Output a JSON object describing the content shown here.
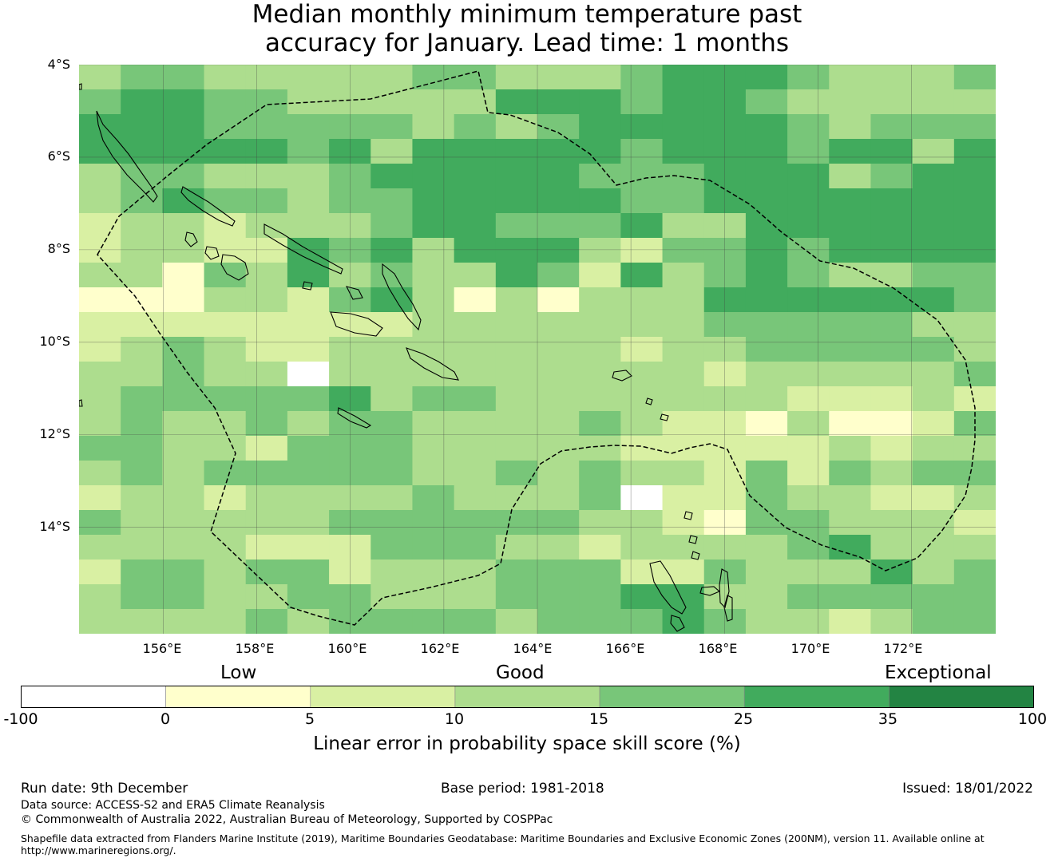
{
  "title": {
    "line1": "Median monthly minimum temperature past",
    "line2": "accuracy for January. Lead time: 1 months"
  },
  "map": {
    "lat_labels": [
      "4°S",
      "6°S",
      "8°S",
      "10°S",
      "12°S",
      "14°S"
    ],
    "lon_labels": [
      "156°E",
      "158°E",
      "160°E",
      "162°E",
      "164°E",
      "166°E",
      "168°E",
      "170°E",
      "172°E"
    ],
    "lat_values": [
      -4,
      -6,
      -8,
      -10,
      -12,
      -14
    ],
    "lon_values": [
      156,
      158,
      160,
      162,
      164,
      166,
      168,
      170,
      172
    ],
    "extent": {
      "lon_min": 154.2,
      "lon_max": 173.8,
      "lat_min": -16.3,
      "lat_max": -4.0
    },
    "grid_color": "#333333",
    "ocean_color": "#ffffff",
    "coast_color": "#000000",
    "boundary_color": "#000000",
    "cell_classes": [
      "3443333344333455543334",
      "4554433333555455433333",
      "5554444434345555543444",
      "5555545355555455545535",
      "3443334555554445553455",
      "3454434455555445555555",
      "2332333455444533555555",
      "2332254535553244545555",
      "3314353433542534543344",
      "1113324531313335555554",
      "2222222233333334444433",
      "2343223333333233444443",
      "3343303333333332333334",
      "3444445344333333322232",
      "3433434433334322131124",
      "4433244433333222223233",
      "3434444433434332424344",
      "2332333343334022433223",
      "4333334444443321443332",
      "3333222444332333345333",
      "2443442333444224333534",
      "3443344333444553344444",
      "3333434444344454332344"
    ]
  },
  "legend": {
    "categories": {
      "low": "Low",
      "good": "Good",
      "exceptional": "Exceptional"
    },
    "ticks": [
      "-100",
      "0",
      "5",
      "10",
      "15",
      "25",
      "35",
      "100"
    ],
    "colors": [
      "#ffffff",
      "#ffffcc",
      "#d9f0a3",
      "#addd8e",
      "#78c679",
      "#41ab5d",
      "#238443"
    ],
    "axis_label": "Linear error in probability space skill score (%)"
  },
  "footer": {
    "run_date": "Run date: 9th December",
    "base_period": "Base period: 1981-2018",
    "issued": "Issued: 18/01/2022",
    "data_source": "Data source: ACCESS-S2 and ERA5 Climate Reanalysis",
    "copyright": "© Commonwealth of Australia 2022, Australian Bureau of Meteorology, Supported by COSPPac",
    "shapefile_line1": "Shapefile data extracted from Flanders Marine Institute (2019), Maritime Boundaries Geodatabase: Maritime Boundaries and Exclusive Economic Zones (200NM), version 11. Available online at",
    "shapefile_line2": "http://www.marineregions.org/."
  }
}
